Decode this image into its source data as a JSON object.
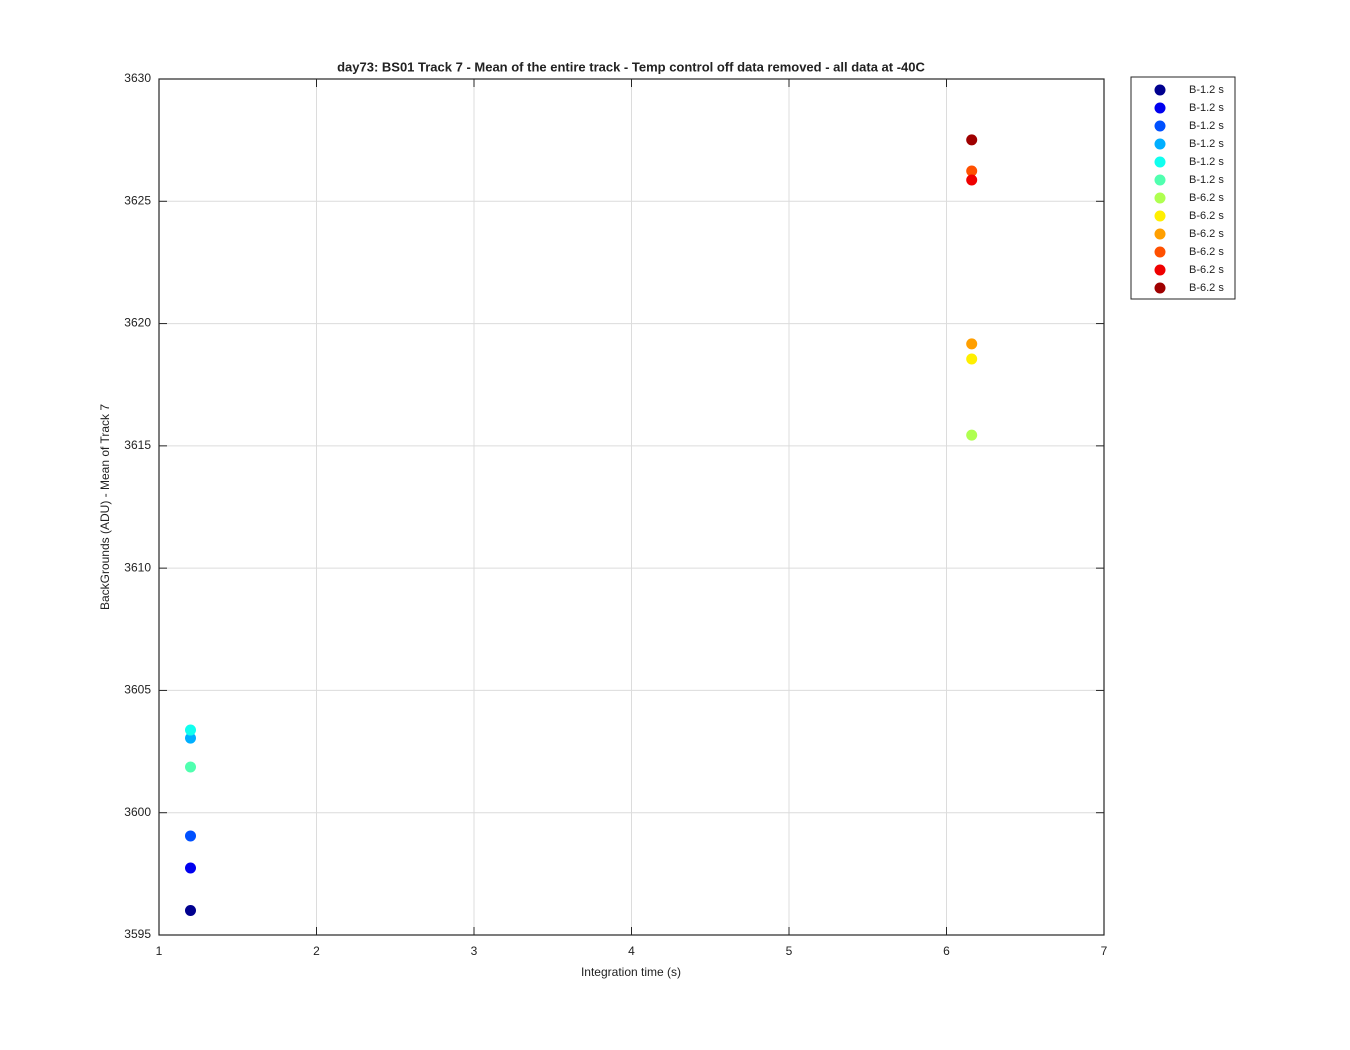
{
  "chart_data": {
    "type": "scatter",
    "title": "day73: BS01  Track 7 - Mean of the entire track - Temp control off data removed - all data at -40C",
    "xlabel": "Integration time (s)",
    "ylabel": "BackGrounds (ADU) - Mean of Track 7",
    "xlim": [
      1,
      7
    ],
    "xticks": [
      1,
      2,
      3,
      4,
      5,
      6,
      7
    ],
    "ylim": [
      3595,
      3630
    ],
    "yticks": [
      3595,
      3600,
      3605,
      3610,
      3615,
      3620,
      3625,
      3630
    ],
    "grid": true,
    "legend": "outside-right",
    "series": [
      {
        "name": "B-1.2 s",
        "color": "#00008f",
        "x": [
          1.2
        ],
        "values": [
          3596.0
        ]
      },
      {
        "name": "B-1.2 s",
        "color": "#0000ef",
        "x": [
          1.2
        ],
        "values": [
          3597.74
        ]
      },
      {
        "name": "B-1.2 s",
        "color": "#0050ff",
        "x": [
          1.2
        ],
        "values": [
          3599.05
        ]
      },
      {
        "name": "B-1.2 s",
        "color": "#00afff",
        "x": [
          1.2
        ],
        "values": [
          3603.05
        ]
      },
      {
        "name": "B-1.2 s",
        "color": "#10ffef",
        "x": [
          1.2
        ],
        "values": [
          3603.38
        ]
      },
      {
        "name": "B-1.2 s",
        "color": "#50ffaf",
        "x": [
          1.2
        ],
        "values": [
          3601.87
        ]
      },
      {
        "name": "B-6.2 s",
        "color": "#afff50",
        "x": [
          6.16
        ],
        "values": [
          3615.44
        ]
      },
      {
        "name": "B-6.2 s",
        "color": "#ffef00",
        "x": [
          6.16
        ],
        "values": [
          3618.55
        ]
      },
      {
        "name": "B-6.2 s",
        "color": "#ff9f00",
        "x": [
          6.16
        ],
        "values": [
          3619.17
        ]
      },
      {
        "name": "B-6.2 s",
        "color": "#ff5000",
        "x": [
          6.16
        ],
        "values": [
          3626.24
        ]
      },
      {
        "name": "B-6.2 s",
        "color": "#ef0000",
        "x": [
          6.16
        ],
        "values": [
          3625.87
        ]
      },
      {
        "name": "B-6.2 s",
        "color": "#9f0000",
        "x": [
          6.16
        ],
        "values": [
          3627.51
        ]
      }
    ]
  }
}
